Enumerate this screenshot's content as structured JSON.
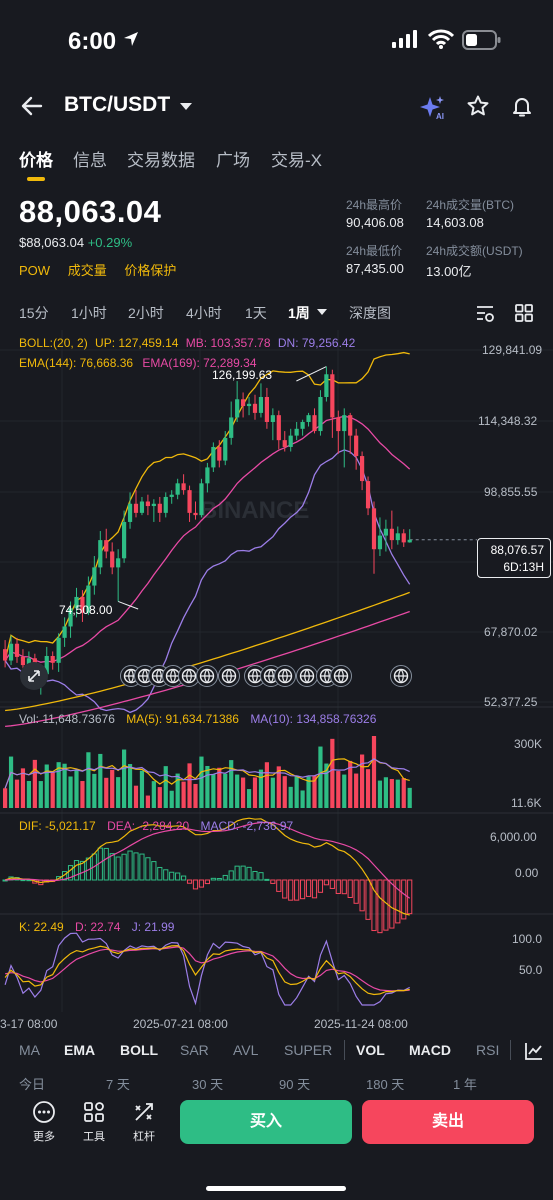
{
  "status_bar": {
    "time": "6:00"
  },
  "header": {
    "pair": "BTC/USDT"
  },
  "tabs": [
    {
      "label": "价格",
      "active": true
    },
    {
      "label": "信息"
    },
    {
      "label": "交易数据"
    },
    {
      "label": "广场"
    },
    {
      "label": "交易-X"
    }
  ],
  "price": {
    "last": "88,063.04",
    "fiat": "$88,063.04",
    "change": "+0.29%",
    "tags": [
      "POW",
      "成交量",
      "价格保护"
    ]
  },
  "stats": {
    "high_label": "24h最高价",
    "high": "90,406.08",
    "vol_btc_label": "24h成交量(BTC)",
    "vol_btc": "14,603.08",
    "low_label": "24h最低价",
    "low": "87,435.00",
    "vol_usdt_label": "24h成交额(USDT)",
    "vol_usdt": "13.00亿"
  },
  "intervals": [
    "15分",
    "1小时",
    "2小时",
    "4小时",
    "1天",
    "1周",
    "深度图"
  ],
  "active_interval": "1周",
  "indicators": {
    "boll": {
      "title": "BOLL:(20, 2)",
      "up": "UP: 127,459.14",
      "mb": "MB: 103,357.78",
      "dn": "DN: 79,256.42"
    },
    "ema": {
      "e144": "EMA(144): 76,668.36",
      "e169": "EMA(169): 72,289.34"
    },
    "vol": {
      "vol": "Vol: 11,648.73676",
      "ma5": "MA(5): 91,634.71386",
      "ma10": "MA(10): 134,858.76326"
    },
    "macd": {
      "dif": "DIF: -5,021.17",
      "dea": "DEA: -2,284.20",
      "macd": "MACD: -2,736.97"
    },
    "kdj": {
      "k": "K: 22.49",
      "d": "D: 22.74",
      "j": "J: 21.99"
    }
  },
  "axes": {
    "price": [
      "129,841.09",
      "114,348.32",
      "98,855.55",
      "67,870.02",
      "52,377.25"
    ],
    "vol": [
      "300K",
      "11.6K"
    ],
    "macd": [
      "6,000.00",
      "0.00"
    ],
    "kdj": [
      "100.0",
      "50.0"
    ],
    "time": [
      "3-17 08:00",
      "2025-07-21 08:00",
      "2025-11-24 08:00"
    ]
  },
  "chart_annotations": {
    "high": "126,199.63",
    "low": "74,508.00",
    "current": "88,076.57",
    "countdown": "6D:13H"
  },
  "watermark": "BINANCE",
  "chart_data": {
    "type": "candlestick",
    "interval": "1周",
    "candles": [
      [
        64000,
        61500,
        66000,
        60000
      ],
      [
        61500,
        65200,
        67000,
        60500
      ],
      [
        65200,
        62300,
        66500,
        61000
      ],
      [
        62300,
        60500,
        64000,
        59500
      ],
      [
        60500,
        62000,
        63500,
        59000
      ],
      [
        62000,
        58000,
        63000,
        56500
      ],
      [
        58000,
        58500,
        60500,
        54000
      ],
      [
        58500,
        62500,
        64500,
        57000
      ],
      [
        62500,
        61000,
        63500,
        59500
      ],
      [
        61000,
        66500,
        67500,
        59000
      ],
      [
        66500,
        69000,
        71000,
        64500
      ],
      [
        69000,
        73000,
        74500,
        66500
      ],
      [
        73000,
        75500,
        77500,
        71000
      ],
      [
        75500,
        72000,
        77000,
        70000
      ],
      [
        72000,
        78000,
        80000,
        71500
      ],
      [
        78000,
        82000,
        84500,
        76000
      ],
      [
        82000,
        88000,
        90000,
        80500
      ],
      [
        88000,
        85500,
        90500,
        84000
      ],
      [
        85500,
        82000,
        87500,
        80500
      ],
      [
        82000,
        84000,
        86000,
        74508
      ],
      [
        84000,
        92000,
        94500,
        83000
      ],
      [
        92000,
        96000,
        98500,
        90500
      ],
      [
        96000,
        94000,
        99000,
        93000
      ],
      [
        94000,
        96500,
        97500,
        93500
      ],
      [
        96500,
        95500,
        98000,
        93500
      ],
      [
        95500,
        96000,
        97000,
        92000
      ],
      [
        96000,
        94000,
        97500,
        92000
      ],
      [
        94000,
        97500,
        98500,
        93000
      ],
      [
        97500,
        98000,
        99000,
        96000
      ],
      [
        98000,
        100500,
        101500,
        97000
      ],
      [
        100500,
        99000,
        102500,
        98000
      ],
      [
        99000,
        94000,
        100000,
        92000
      ],
      [
        94000,
        93500,
        96500,
        92500
      ],
      [
        93500,
        100500,
        101500,
        93000
      ],
      [
        100500,
        104000,
        105000,
        98500
      ],
      [
        104000,
        108500,
        109500,
        103000
      ],
      [
        108500,
        105500,
        110000,
        104000
      ],
      [
        105500,
        110500,
        112000,
        104500
      ],
      [
        110500,
        115000,
        118500,
        109000
      ],
      [
        115000,
        119000,
        123000,
        114000
      ],
      [
        119000,
        117500,
        120500,
        115000
      ],
      [
        117500,
        118000,
        119500,
        115500
      ],
      [
        118000,
        116000,
        120000,
        114500
      ],
      [
        116000,
        119500,
        122500,
        115000
      ],
      [
        119500,
        114000,
        121500,
        112500
      ],
      [
        114000,
        115500,
        117000,
        110000
      ],
      [
        115500,
        110000,
        116500,
        108000
      ],
      [
        110000,
        108500,
        112000,
        107500
      ],
      [
        108500,
        111000,
        112500,
        107500
      ],
      [
        111000,
        112500,
        114000,
        110000
      ],
      [
        112500,
        114000,
        114500,
        111000
      ],
      [
        114000,
        115500,
        116000,
        113000
      ],
      [
        115500,
        112000,
        117000,
        111500
      ],
      [
        112000,
        119500,
        121000,
        111000
      ],
      [
        119500,
        124500,
        126199.63,
        118500
      ],
      [
        124500,
        115000,
        125500,
        110500
      ],
      [
        115000,
        112000,
        116500,
        107000
      ],
      [
        112000,
        115500,
        117000,
        104000
      ],
      [
        115500,
        111000,
        116000,
        107000
      ],
      [
        111000,
        106500,
        112500,
        103500
      ],
      [
        106500,
        101000,
        107500,
        99000
      ],
      [
        101000,
        95000,
        102000,
        93500
      ],
      [
        95000,
        86000,
        96500,
        80600
      ],
      [
        86000,
        89000,
        93000,
        84500
      ],
      [
        89000,
        90500,
        92500,
        85500
      ],
      [
        90500,
        88000,
        94500,
        86000
      ],
      [
        88000,
        89500,
        91000,
        87000
      ],
      [
        89500,
        87500,
        90400,
        86500
      ],
      [
        87500,
        88076.57,
        90406.08,
        87435
      ]
    ],
    "price_axis": [
      129841.09,
      114348.32,
      98855.55,
      67870.02,
      52377.25
    ],
    "highest_label": 126199.63,
    "lowest_label": 74508.0,
    "current": 88076.57
  }
}
